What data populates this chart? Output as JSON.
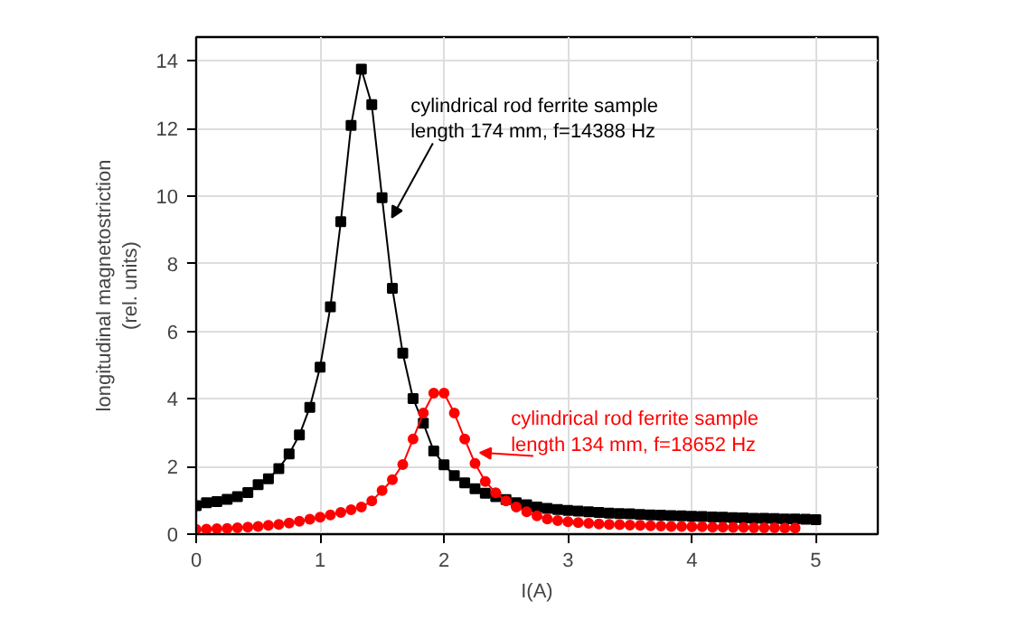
{
  "chart_data": {
    "type": "line",
    "xlabel": "I(A)",
    "ylabel": "longitudinal magnetostriction\n(rel. units)",
    "xlim": [
      0,
      5.5
    ],
    "ylim": [
      0,
      14.7
    ],
    "xticks": [
      0,
      1,
      2,
      3,
      4,
      5
    ],
    "yticks": [
      0,
      2,
      4,
      6,
      8,
      10,
      12,
      14
    ],
    "grid": true,
    "line_style": "solid",
    "series": [
      {
        "color": "#000000",
        "marker": "square",
        "x": [
          0,
          0.083,
          0.167,
          0.25,
          0.333,
          0.417,
          0.5,
          0.583,
          0.667,
          0.75,
          0.833,
          0.917,
          1.0,
          1.083,
          1.167,
          1.25,
          1.333,
          1.417,
          1.5,
          1.583,
          1.667,
          1.75,
          1.833,
          1.917,
          2.0,
          2.083,
          2.167,
          2.25,
          2.333,
          2.417,
          2.5,
          2.583,
          2.667,
          2.75,
          2.833,
          2.917,
          3.0,
          3.083,
          3.167,
          3.25,
          3.333,
          3.417,
          3.5,
          3.583,
          3.667,
          3.75,
          3.833,
          3.917,
          4.0,
          4.083,
          4.167,
          4.25,
          4.333,
          4.417,
          4.5,
          4.583,
          4.667,
          4.75,
          4.833,
          4.917,
          5.0
        ],
        "values": [
          0.84,
          0.93,
          0.96,
          1.03,
          1.11,
          1.23,
          1.46,
          1.64,
          1.94,
          2.37,
          2.93,
          3.75,
          4.94,
          6.72,
          9.24,
          12.09,
          13.75,
          12.7,
          9.95,
          7.27,
          5.35,
          4.01,
          3.28,
          2.46,
          2.05,
          1.73,
          1.52,
          1.34,
          1.21,
          1.11,
          1.02,
          0.93,
          0.87,
          0.8,
          0.76,
          0.73,
          0.7,
          0.68,
          0.66,
          0.64,
          0.62,
          0.61,
          0.6,
          0.58,
          0.57,
          0.56,
          0.55,
          0.54,
          0.53,
          0.52,
          0.51,
          0.5,
          0.49,
          0.48,
          0.47,
          0.47,
          0.46,
          0.45,
          0.45,
          0.44,
          0.43
        ]
      },
      {
        "color": "#ff0000",
        "marker": "circle",
        "x": [
          0,
          0.083,
          0.167,
          0.25,
          0.333,
          0.417,
          0.5,
          0.583,
          0.667,
          0.75,
          0.833,
          0.917,
          1.0,
          1.083,
          1.167,
          1.25,
          1.333,
          1.417,
          1.5,
          1.583,
          1.667,
          1.75,
          1.833,
          1.917,
          2.0,
          2.083,
          2.167,
          2.25,
          2.333,
          2.417,
          2.5,
          2.583,
          2.667,
          2.75,
          2.833,
          2.917,
          3.0,
          3.083,
          3.167,
          3.25,
          3.333,
          3.417,
          3.5,
          3.583,
          3.667,
          3.75,
          3.833,
          3.917,
          4.0,
          4.083,
          4.167,
          4.25,
          4.333,
          4.417,
          4.5,
          4.583,
          4.667,
          4.75,
          4.833
        ],
        "values": [
          0.14,
          0.15,
          0.16,
          0.17,
          0.19,
          0.21,
          0.23,
          0.26,
          0.29,
          0.33,
          0.38,
          0.44,
          0.5,
          0.57,
          0.64,
          0.72,
          0.8,
          0.98,
          1.29,
          1.61,
          2.06,
          2.81,
          3.58,
          4.17,
          4.17,
          3.58,
          2.81,
          2.09,
          1.56,
          1.22,
          0.98,
          0.8,
          0.66,
          0.54,
          0.45,
          0.4,
          0.37,
          0.34,
          0.32,
          0.3,
          0.29,
          0.28,
          0.27,
          0.26,
          0.25,
          0.24,
          0.23,
          0.23,
          0.22,
          0.22,
          0.21,
          0.21,
          0.2,
          0.2,
          0.19,
          0.19,
          0.19,
          0.18,
          0.18
        ]
      }
    ],
    "annotations": [
      {
        "text": "cylindrical rod ferrite sample\nlength 174 mm, f=14388 Hz",
        "x": 1.58,
        "y": 9.36
      },
      {
        "text": "cylindrical rod ferrite sample\nlength 134 mm, f=18652 Hz",
        "x": 2.29,
        "y": 2.41
      }
    ]
  }
}
